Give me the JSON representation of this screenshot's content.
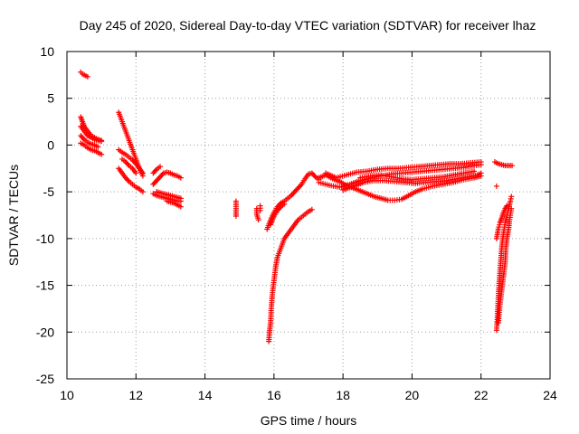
{
  "chart_data": {
    "type": "scatter",
    "title": "Day 245 of 2020, Sidereal Day-to-day VTEC variation (SDTVAR) for receiver lhaz",
    "xlabel": "GPS time / hours",
    "ylabel": "SDTVAR / TECUs",
    "xlim": [
      10,
      24
    ],
    "ylim": [
      -25,
      10
    ],
    "xticks": [
      10,
      12,
      14,
      16,
      18,
      20,
      22,
      24
    ],
    "yticks": [
      10,
      5,
      0,
      -5,
      -10,
      -15,
      -20,
      -25
    ],
    "grid": true,
    "marker": "+",
    "color": "#ff0000",
    "series": [
      {
        "name": "arc-1",
        "points": [
          [
            10.4,
            7.8
          ],
          [
            10.45,
            7.6
          ],
          [
            10.5,
            7.5
          ],
          [
            10.55,
            7.4
          ],
          [
            10.6,
            7.3
          ]
        ]
      },
      {
        "name": "arc-2",
        "points": [
          [
            10.4,
            3.0
          ],
          [
            10.45,
            2.5
          ],
          [
            10.5,
            2.0
          ],
          [
            10.6,
            1.5
          ],
          [
            10.7,
            1.0
          ],
          [
            10.8,
            0.8
          ],
          [
            10.9,
            0.6
          ],
          [
            11.0,
            0.5
          ]
        ]
      },
      {
        "name": "arc-3",
        "points": [
          [
            10.4,
            2.0
          ],
          [
            10.5,
            1.5
          ],
          [
            10.6,
            1.0
          ],
          [
            10.7,
            0.8
          ],
          [
            10.8,
            0.6
          ],
          [
            10.9,
            0.5
          ],
          [
            11.0,
            0.4
          ]
        ]
      },
      {
        "name": "arc-4",
        "points": [
          [
            10.4,
            0.2
          ],
          [
            10.5,
            0.0
          ],
          [
            10.6,
            -0.3
          ],
          [
            10.7,
            -0.5
          ],
          [
            10.8,
            -0.6
          ],
          [
            10.9,
            -0.8
          ],
          [
            11.0,
            -1.0
          ]
        ]
      },
      {
        "name": "arc-5",
        "points": [
          [
            10.4,
            1.0
          ],
          [
            10.5,
            0.6
          ],
          [
            10.6,
            0.3
          ],
          [
            10.7,
            0.1
          ],
          [
            10.8,
            0.0
          ],
          [
            10.9,
            -0.2
          ]
        ]
      },
      {
        "name": "arc-6",
        "points": [
          [
            11.5,
            3.5
          ],
          [
            11.6,
            2.5
          ],
          [
            11.7,
            1.5
          ],
          [
            11.8,
            0.5
          ],
          [
            11.9,
            -0.5
          ],
          [
            12.0,
            -1.5
          ],
          [
            12.1,
            -2.5
          ],
          [
            12.2,
            -3.3
          ]
        ]
      },
      {
        "name": "arc-7",
        "points": [
          [
            11.5,
            -0.5
          ],
          [
            11.6,
            -0.8
          ],
          [
            11.7,
            -1.0
          ],
          [
            11.8,
            -1.3
          ],
          [
            11.9,
            -1.6
          ],
          [
            12.0,
            -2.0
          ],
          [
            12.1,
            -2.5
          ],
          [
            12.2,
            -3.0
          ]
        ]
      },
      {
        "name": "arc-8",
        "points": [
          [
            11.5,
            -2.5
          ],
          [
            11.6,
            -3.0
          ],
          [
            11.7,
            -3.5
          ],
          [
            11.8,
            -3.9
          ],
          [
            11.9,
            -4.2
          ],
          [
            12.0,
            -4.5
          ],
          [
            12.1,
            -4.7
          ],
          [
            12.2,
            -5.0
          ]
        ]
      },
      {
        "name": "arc-9",
        "points": [
          [
            11.6,
            -1.5
          ],
          [
            11.7,
            -1.8
          ],
          [
            11.8,
            -2.2
          ],
          [
            11.9,
            -2.5
          ],
          [
            12.0,
            -3.0
          ]
        ]
      },
      {
        "name": "arc-10",
        "points": [
          [
            12.5,
            -3.0
          ],
          [
            12.6,
            -2.6
          ],
          [
            12.7,
            -2.3
          ]
        ]
      },
      {
        "name": "arc-11",
        "points": [
          [
            12.5,
            -4.2
          ],
          [
            12.6,
            -3.8
          ],
          [
            12.7,
            -3.4
          ],
          [
            12.8,
            -3.0
          ],
          [
            12.9,
            -2.9
          ],
          [
            13.0,
            -3.0
          ],
          [
            13.1,
            -3.2
          ],
          [
            13.2,
            -3.3
          ],
          [
            13.3,
            -3.5
          ]
        ]
      },
      {
        "name": "arc-12",
        "points": [
          [
            12.5,
            -5.2
          ],
          [
            12.6,
            -5.4
          ],
          [
            12.7,
            -5.5
          ],
          [
            12.8,
            -5.6
          ],
          [
            12.9,
            -5.7
          ],
          [
            13.0,
            -5.8
          ],
          [
            13.1,
            -5.9
          ],
          [
            13.2,
            -6.0
          ],
          [
            13.3,
            -6.0
          ]
        ]
      },
      {
        "name": "arc-13",
        "points": [
          [
            12.6,
            -5.0
          ],
          [
            12.7,
            -5.1
          ],
          [
            12.8,
            -5.2
          ],
          [
            12.9,
            -5.3
          ],
          [
            13.0,
            -5.4
          ],
          [
            13.1,
            -5.5
          ],
          [
            13.2,
            -5.6
          ],
          [
            13.3,
            -5.7
          ]
        ]
      },
      {
        "name": "arc-14",
        "points": [
          [
            12.9,
            -6.0
          ],
          [
            13.0,
            -6.1
          ],
          [
            13.1,
            -6.2
          ],
          [
            13.2,
            -6.4
          ],
          [
            13.3,
            -6.6
          ]
        ]
      },
      {
        "name": "arc-15",
        "points": [
          [
            14.9,
            -6.0
          ],
          [
            14.9,
            -6.6
          ],
          [
            14.9,
            -7.6
          ]
        ]
      },
      {
        "name": "arc-16",
        "points": [
          [
            15.5,
            -6.8
          ],
          [
            15.5,
            -7.4
          ],
          [
            15.55,
            -8.0
          ]
        ]
      },
      {
        "name": "arc-17",
        "points": [
          [
            15.6,
            -6.5
          ],
          [
            15.6,
            -7.0
          ]
        ]
      },
      {
        "name": "arc-18",
        "points": [
          [
            15.85,
            -21.0
          ],
          [
            15.87,
            -20.0
          ],
          [
            15.9,
            -19.0
          ],
          [
            15.92,
            -17.5
          ],
          [
            15.95,
            -16.0
          ],
          [
            16.0,
            -14.5
          ],
          [
            16.05,
            -13.0
          ],
          [
            16.1,
            -12.0
          ],
          [
            16.2,
            -11.0
          ],
          [
            16.3,
            -10.0
          ],
          [
            16.4,
            -9.5
          ],
          [
            16.5,
            -9.0
          ],
          [
            16.6,
            -8.5
          ],
          [
            16.7,
            -8.0
          ],
          [
            16.8,
            -7.7
          ],
          [
            16.9,
            -7.4
          ],
          [
            17.0,
            -7.1
          ],
          [
            17.1,
            -6.9
          ]
        ]
      },
      {
        "name": "arc-19",
        "points": [
          [
            15.8,
            -9.0
          ],
          [
            15.9,
            -8.0
          ],
          [
            16.0,
            -7.2
          ],
          [
            16.1,
            -6.6
          ],
          [
            16.2,
            -6.2
          ],
          [
            16.3,
            -6.0
          ],
          [
            16.4,
            -5.7
          ],
          [
            16.5,
            -5.4
          ],
          [
            16.6,
            -5.0
          ],
          [
            16.7,
            -4.6
          ],
          [
            16.8,
            -4.2
          ],
          [
            16.9,
            -3.6
          ],
          [
            17.0,
            -3.1
          ],
          [
            17.1,
            -3.0
          ],
          [
            17.2,
            -3.4
          ],
          [
            17.3,
            -3.7
          ]
        ]
      },
      {
        "name": "arc-20",
        "points": [
          [
            15.9,
            -8.5
          ],
          [
            16.0,
            -7.6
          ],
          [
            16.1,
            -7.0
          ],
          [
            16.2,
            -6.6
          ],
          [
            16.3,
            -6.3
          ]
        ]
      },
      {
        "name": "arc-21",
        "points": [
          [
            17.3,
            -3.5
          ],
          [
            17.5,
            -3.2
          ],
          [
            17.7,
            -3.6
          ],
          [
            17.9,
            -3.9
          ],
          [
            18.1,
            -4.3
          ],
          [
            18.3,
            -4.6
          ],
          [
            18.5,
            -4.9
          ],
          [
            18.7,
            -5.2
          ],
          [
            18.9,
            -5.5
          ],
          [
            19.1,
            -5.7
          ],
          [
            19.3,
            -5.9
          ],
          [
            19.5,
            -5.9
          ],
          [
            19.7,
            -5.8
          ],
          [
            19.9,
            -5.4
          ],
          [
            20.1,
            -5.0
          ],
          [
            20.3,
            -4.7
          ],
          [
            20.6,
            -4.4
          ],
          [
            20.9,
            -4.2
          ],
          [
            21.2,
            -4.0
          ],
          [
            21.5,
            -3.7
          ],
          [
            21.8,
            -3.5
          ],
          [
            22.0,
            -3.3
          ]
        ]
      },
      {
        "name": "arc-22",
        "points": [
          [
            17.3,
            -4.0
          ],
          [
            17.6,
            -4.3
          ],
          [
            17.9,
            -4.5
          ],
          [
            18.2,
            -4.2
          ],
          [
            18.5,
            -3.8
          ],
          [
            18.8,
            -3.5
          ],
          [
            19.1,
            -3.3
          ],
          [
            19.4,
            -3.1
          ],
          [
            19.7,
            -3.0
          ],
          [
            20.0,
            -2.9
          ],
          [
            20.3,
            -2.8
          ],
          [
            20.6,
            -2.7
          ],
          [
            20.9,
            -2.6
          ],
          [
            21.2,
            -2.5
          ],
          [
            21.5,
            -2.4
          ],
          [
            21.8,
            -2.2
          ],
          [
            22.0,
            -2.1
          ]
        ]
      },
      {
        "name": "arc-23",
        "points": [
          [
            17.5,
            -3.0
          ],
          [
            17.8,
            -3.5
          ],
          [
            18.1,
            -3.2
          ],
          [
            18.4,
            -2.9
          ],
          [
            18.7,
            -2.8
          ],
          [
            19.0,
            -2.6
          ],
          [
            19.3,
            -2.5
          ],
          [
            19.6,
            -2.5
          ],
          [
            19.9,
            -2.4
          ],
          [
            20.2,
            -2.3
          ],
          [
            20.5,
            -2.2
          ],
          [
            20.8,
            -2.1
          ],
          [
            21.1,
            -2.0
          ],
          [
            21.4,
            -2.0
          ],
          [
            21.7,
            -1.9
          ],
          [
            22.0,
            -1.8
          ]
        ]
      },
      {
        "name": "arc-24",
        "points": [
          [
            18.0,
            -4.8
          ],
          [
            18.3,
            -4.4
          ],
          [
            18.6,
            -4.0
          ],
          [
            18.9,
            -3.8
          ],
          [
            19.2,
            -3.8
          ],
          [
            19.5,
            -3.9
          ],
          [
            19.8,
            -4.0
          ],
          [
            20.1,
            -4.1
          ],
          [
            20.4,
            -4.0
          ],
          [
            20.7,
            -3.9
          ],
          [
            21.0,
            -3.8
          ],
          [
            21.3,
            -3.6
          ],
          [
            21.6,
            -3.4
          ],
          [
            21.9,
            -3.2
          ],
          [
            22.0,
            -3.0
          ]
        ]
      },
      {
        "name": "arc-25",
        "points": [
          [
            18.5,
            -3.5
          ],
          [
            18.8,
            -3.3
          ],
          [
            19.1,
            -3.2
          ],
          [
            19.4,
            -3.4
          ],
          [
            19.7,
            -3.6
          ],
          [
            20.0,
            -3.7
          ],
          [
            20.3,
            -3.6
          ],
          [
            20.6,
            -3.5
          ],
          [
            20.9,
            -3.4
          ],
          [
            21.2,
            -3.2
          ],
          [
            21.5,
            -3.0
          ],
          [
            21.8,
            -2.8
          ]
        ]
      },
      {
        "name": "arc-26",
        "points": [
          [
            22.4,
            -1.8
          ],
          [
            22.5,
            -2.0
          ],
          [
            22.6,
            -2.1
          ],
          [
            22.7,
            -2.2
          ],
          [
            22.8,
            -2.2
          ],
          [
            22.9,
            -2.2
          ]
        ]
      },
      {
        "name": "arc-27",
        "points": [
          [
            22.45,
            -4.4
          ]
        ]
      },
      {
        "name": "arc-28",
        "points": [
          [
            22.45,
            -19.8
          ],
          [
            22.48,
            -18.0
          ],
          [
            22.5,
            -16.5
          ],
          [
            22.52,
            -15.0
          ],
          [
            22.55,
            -13.5
          ],
          [
            22.58,
            -12.0
          ],
          [
            22.6,
            -11.0
          ],
          [
            22.63,
            -10.0
          ],
          [
            22.67,
            -9.0
          ],
          [
            22.7,
            -8.3
          ],
          [
            22.75,
            -7.5
          ],
          [
            22.8,
            -6.8
          ],
          [
            22.85,
            -6.0
          ],
          [
            22.88,
            -5.5
          ]
        ]
      },
      {
        "name": "arc-29",
        "points": [
          [
            22.5,
            -19.0
          ],
          [
            22.55,
            -17.0
          ],
          [
            22.6,
            -15.5
          ],
          [
            22.65,
            -14.0
          ],
          [
            22.7,
            -12.5
          ],
          [
            22.72,
            -11.0
          ],
          [
            22.75,
            -10.0
          ],
          [
            22.8,
            -9.0
          ],
          [
            22.82,
            -8.2
          ],
          [
            22.85,
            -7.5
          ],
          [
            22.88,
            -6.8
          ]
        ]
      },
      {
        "name": "arc-30",
        "points": [
          [
            22.45,
            -10.0
          ],
          [
            22.5,
            -9.0
          ],
          [
            22.55,
            -8.3
          ],
          [
            22.6,
            -7.8
          ],
          [
            22.65,
            -7.2
          ],
          [
            22.7,
            -6.8
          ],
          [
            22.75,
            -6.5
          ]
        ]
      }
    ]
  }
}
